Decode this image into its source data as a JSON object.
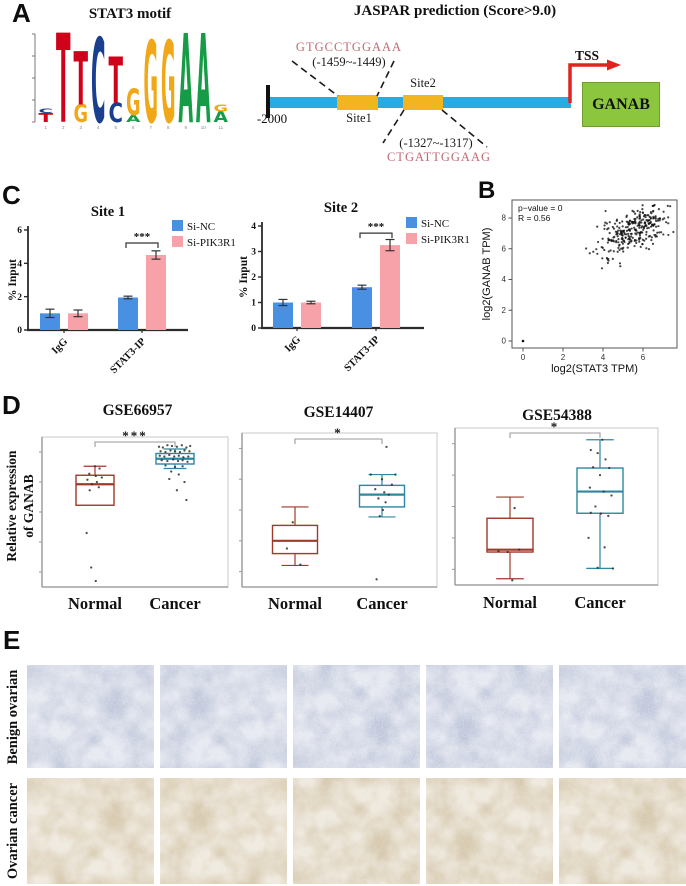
{
  "colors": {
    "bar_blue": "#4a90e2",
    "bar_pink": "#f7a1a8",
    "box_red": "#9e3a28",
    "box_teal": "#2d86a2",
    "diagram_blue": "#29abe2",
    "site_yellow": "#f2b41f",
    "gene_green": "#8cc63e",
    "tss_red": "#e0231c",
    "seq_pink": "#c16a74",
    "logo": {
      "T": "#d0021b",
      "C": "#1a3f8f",
      "G": "#f0a818",
      "A": "#169c46"
    },
    "benign_base": "#cfd4e2",
    "cancer_base": "#dbd0bc"
  },
  "panels": {
    "A": {
      "label": "A",
      "motif_title": "STAT3 motif",
      "jaspar_title": "JASPAR prediction (Score>9.0)",
      "diagram": {
        "seq1": "GTGCCTGGAAA",
        "range1": "(-1459~-1449)",
        "site1": "Site1",
        "site2": "Site2",
        "range2": "(-1327~-1317)",
        "seq2": "CTGATTGGAAG",
        "start": "-2000",
        "tss": "TSS",
        "gene": "GANAB"
      },
      "motif_logo": {
        "positions": [
          {
            "n": "1",
            "stack": [
              {
                "l": "T",
                "h": 0.1
              },
              {
                "l": "C",
                "h": 0.05
              }
            ]
          },
          {
            "n": "2",
            "stack": [
              {
                "l": "T",
                "h": 1.0
              }
            ]
          },
          {
            "n": "3",
            "stack": [
              {
                "l": "G",
                "h": 0.2
              },
              {
                "l": "T",
                "h": 0.6
              }
            ]
          },
          {
            "n": "4",
            "stack": [
              {
                "l": "C",
                "h": 0.95
              }
            ]
          },
          {
            "n": "5",
            "stack": [
              {
                "l": "C",
                "h": 0.22
              },
              {
                "l": "T",
                "h": 0.52
              }
            ]
          },
          {
            "n": "6",
            "stack": [
              {
                "l": "A",
                "h": 0.08
              },
              {
                "l": "G",
                "h": 0.3
              }
            ]
          },
          {
            "n": "7",
            "stack": [
              {
                "l": "G",
                "h": 0.92
              }
            ]
          },
          {
            "n": "8",
            "stack": [
              {
                "l": "G",
                "h": 0.92
              }
            ]
          },
          {
            "n": "9",
            "stack": [
              {
                "l": "A",
                "h": 1.0
              }
            ]
          },
          {
            "n": "10",
            "stack": [
              {
                "l": "A",
                "h": 1.0
              }
            ]
          },
          {
            "n": "11",
            "stack": [
              {
                "l": "A",
                "h": 0.12
              },
              {
                "l": "G",
                "h": 0.08
              }
            ]
          }
        ]
      }
    },
    "B": {
      "label": "B"
    },
    "C": {
      "label": "C"
    },
    "D": {
      "label": "D",
      "ylabel_line1": "Relative expression",
      "ylabel_line2": "of GANAB"
    },
    "E": {
      "label": "E",
      "rows": [
        {
          "label": "Benign ovarian",
          "type": "benign"
        },
        {
          "label": "Ovarian cancer",
          "type": "cancer"
        }
      ],
      "cols": 5
    }
  },
  "chart_data": [
    {
      "id": "site1",
      "type": "bar",
      "title": "Site 1",
      "ylabel": "% Input",
      "categories": [
        "IgG",
        "STAT3-IP"
      ],
      "series": [
        {
          "name": "Si-NC",
          "color_key": "bar_blue",
          "values": [
            1.0,
            1.95
          ],
          "errors": [
            0.25,
            0.08
          ]
        },
        {
          "name": "Si-PIK3R1",
          "color_key": "bar_pink",
          "values": [
            1.0,
            4.5
          ],
          "errors": [
            0.2,
            0.25
          ]
        }
      ],
      "ylim": [
        0,
        6
      ],
      "yticks": [
        0,
        2,
        4,
        6
      ],
      "sig": {
        "group": 1,
        "label": "***"
      }
    },
    {
      "id": "site2",
      "type": "bar",
      "title": "Site 2",
      "ylabel": "% Input",
      "categories": [
        "IgG",
        "STAT3-IP"
      ],
      "series": [
        {
          "name": "Si-NC",
          "color_key": "bar_blue",
          "values": [
            1.0,
            1.6
          ],
          "errors": [
            0.12,
            0.08
          ]
        },
        {
          "name": "Si-PIK3R1",
          "color_key": "bar_pink",
          "values": [
            1.0,
            3.25
          ],
          "errors": [
            0.05,
            0.22
          ]
        }
      ],
      "ylim": [
        0,
        4
      ],
      "yticks": [
        0,
        1,
        2,
        3,
        4
      ],
      "sig": {
        "group": 1,
        "label": "***"
      }
    },
    {
      "id": "scat",
      "type": "scatter",
      "annotation1": "p−value = 0",
      "annotation2": "R = 0.56",
      "xlabel": "log2(STAT3 TPM)",
      "ylabel": "log2(GANAB TPM)",
      "xticks": [
        0,
        2,
        4,
        6
      ],
      "yticks": [
        0,
        2,
        4,
        6,
        8
      ],
      "xlim": [
        -0.6,
        7.7
      ],
      "ylim": [
        -0.4,
        9.2
      ],
      "cluster": {
        "n": 295,
        "cx": 5.55,
        "cy": 7.25,
        "sx": 0.92,
        "sy": 0.78,
        "r": 0.56,
        "xmin": 3.05,
        "xmax": 7.55,
        "ymin": 4.7,
        "ymax": 8.85
      },
      "outliers": [
        [
          0,
          0
        ]
      ]
    },
    {
      "id": "gse66957",
      "type": "box",
      "title": "GSE66957",
      "sig": "***",
      "categories": [
        "Normal",
        "Cancer"
      ],
      "groups": [
        {
          "name": "Normal",
          "color_key": "box_red",
          "lo": 0.545,
          "q1": 0.545,
          "med": 0.685,
          "q3": 0.745,
          "hi": 0.805,
          "dots": [
            [
              0.5,
              0.805
            ],
            [
              0.62,
              0.79
            ],
            [
              0.35,
              0.755
            ],
            [
              0.52,
              0.74
            ],
            [
              0.68,
              0.73
            ],
            [
              0.3,
              0.715
            ],
            [
              0.55,
              0.7
            ],
            [
              0.42,
              0.685
            ],
            [
              0.6,
              0.665
            ],
            [
              0.36,
              0.645
            ],
            [
              0.28,
              0.36
            ],
            [
              0.4,
              0.13
            ],
            [
              0.52,
              0.04
            ]
          ]
        },
        {
          "name": "Cancer",
          "color_key": "box_teal",
          "lo": 0.79,
          "q1": 0.82,
          "med": 0.855,
          "q3": 0.89,
          "hi": 0.92,
          "dots": [
            [
              0.08,
              0.935
            ],
            [
              0.18,
              0.93
            ],
            [
              0.3,
              0.945
            ],
            [
              0.42,
              0.94
            ],
            [
              0.55,
              0.935
            ],
            [
              0.68,
              0.945
            ],
            [
              0.8,
              0.93
            ],
            [
              0.9,
              0.94
            ],
            [
              0.12,
              0.905
            ],
            [
              0.25,
              0.9
            ],
            [
              0.38,
              0.91
            ],
            [
              0.5,
              0.905
            ],
            [
              0.63,
              0.9
            ],
            [
              0.75,
              0.91
            ],
            [
              0.88,
              0.905
            ],
            [
              0.1,
              0.875
            ],
            [
              0.22,
              0.87
            ],
            [
              0.35,
              0.88
            ],
            [
              0.48,
              0.87
            ],
            [
              0.6,
              0.875
            ],
            [
              0.72,
              0.865
            ],
            [
              0.85,
              0.87
            ],
            [
              0.15,
              0.845
            ],
            [
              0.3,
              0.84
            ],
            [
              0.45,
              0.85
            ],
            [
              0.58,
              0.84
            ],
            [
              0.7,
              0.845
            ],
            [
              0.83,
              0.835
            ],
            [
              0.25,
              0.81
            ],
            [
              0.5,
              0.8
            ],
            [
              0.7,
              0.805
            ],
            [
              0.4,
              0.77
            ],
            [
              0.6,
              0.75
            ],
            [
              0.35,
              0.72
            ],
            [
              0.75,
              0.7
            ],
            [
              0.55,
              0.645
            ],
            [
              0.8,
              0.58
            ]
          ]
        }
      ]
    },
    {
      "id": "gse14407",
      "type": "box",
      "title": "GSE14407",
      "sig": "*",
      "categories": [
        "Normal",
        "Cancer"
      ],
      "groups": [
        {
          "name": "Normal",
          "color_key": "box_red",
          "lo": 0.14,
          "q1": 0.217,
          "med": 0.3,
          "q3": 0.4,
          "hi": 0.52,
          "dots": [
            [
              0.45,
              0.42
            ],
            [
              0.32,
              0.25
            ],
            [
              0.62,
              0.145
            ]
          ]
        },
        {
          "name": "Cancer",
          "color_key": "box_teal",
          "lo": 0.455,
          "q1": 0.52,
          "med": 0.6,
          "q3": 0.66,
          "hi": 0.73,
          "dots": [
            [
              0.6,
              0.91
            ],
            [
              0.25,
              0.73
            ],
            [
              0.8,
              0.73
            ],
            [
              0.5,
              0.7
            ],
            [
              0.72,
              0.665
            ],
            [
              0.35,
              0.635
            ],
            [
              0.55,
              0.615
            ],
            [
              0.65,
              0.6
            ],
            [
              0.42,
              0.575
            ],
            [
              0.58,
              0.55
            ],
            [
              0.52,
              0.5
            ],
            [
              0.45,
              0.46
            ],
            [
              0.38,
              0.05
            ]
          ]
        }
      ]
    },
    {
      "id": "gse54388",
      "type": "box",
      "title": "GSE54388",
      "sig": "*",
      "categories": [
        "Normal",
        "Cancer"
      ],
      "groups": [
        {
          "name": "Normal",
          "color_key": "box_red",
          "lo": 0.04,
          "q1": 0.21,
          "med": 0.225,
          "q3": 0.425,
          "hi": 0.56,
          "dots": [
            [
              0.6,
              0.49
            ],
            [
              0.25,
              0.215
            ],
            [
              0.45,
              0.21
            ],
            [
              0.7,
              0.225
            ],
            [
              0.55,
              0.03
            ]
          ]
        },
        {
          "name": "Cancer",
          "color_key": "box_teal",
          "lo": 0.106,
          "q1": 0.457,
          "med": 0.595,
          "q3": 0.745,
          "hi": 0.925,
          "dots": [
            [
              0.55,
              0.925
            ],
            [
              0.3,
              0.86
            ],
            [
              0.45,
              0.84
            ],
            [
              0.62,
              0.8
            ],
            [
              0.35,
              0.75
            ],
            [
              0.7,
              0.745
            ],
            [
              0.5,
              0.7
            ],
            [
              0.28,
              0.62
            ],
            [
              0.58,
              0.595
            ],
            [
              0.75,
              0.57
            ],
            [
              0.4,
              0.5
            ],
            [
              0.3,
              0.46
            ],
            [
              0.52,
              0.455
            ],
            [
              0.68,
              0.44
            ],
            [
              0.25,
              0.3
            ],
            [
              0.6,
              0.24
            ],
            [
              0.45,
              0.11
            ],
            [
              0.78,
              0.105
            ]
          ]
        }
      ]
    }
  ]
}
